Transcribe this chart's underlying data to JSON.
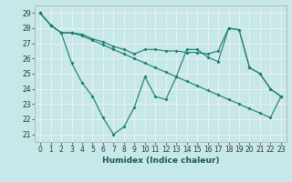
{
  "xlabel": "Humidex (Indice chaleur)",
  "xlim": [
    -0.5,
    23.5
  ],
  "ylim": [
    20.5,
    29.5
  ],
  "xticks": [
    0,
    1,
    2,
    3,
    4,
    5,
    6,
    7,
    8,
    9,
    10,
    11,
    12,
    13,
    14,
    15,
    16,
    17,
    18,
    19,
    20,
    21,
    22,
    23
  ],
  "yticks": [
    21,
    22,
    23,
    24,
    25,
    26,
    27,
    28,
    29
  ],
  "bg_color": "#c6e8e8",
  "grid_color": "#f0f0f0",
  "line_color": "#1a7a6e",
  "line1_y": [
    29,
    28.2,
    27.7,
    25.7,
    24.4,
    23.5,
    22.1,
    21.0,
    21.5,
    22.8,
    24.8,
    23.5,
    23.3,
    24.8,
    26.6,
    26.6,
    26.1,
    25.8,
    28.0,
    27.9,
    25.4,
    25.0,
    24.0,
    23.5
  ],
  "line2_y": [
    29,
    28.2,
    27.7,
    27.7,
    27.6,
    27.3,
    27.1,
    26.8,
    26.6,
    26.3,
    26.6,
    26.6,
    26.5,
    26.5,
    26.4,
    26.4,
    26.3,
    26.5,
    28.0,
    27.9,
    25.4,
    25.0,
    24.0,
    23.5
  ],
  "line3_y": [
    29,
    28.2,
    27.7,
    27.7,
    27.5,
    27.2,
    26.9,
    26.6,
    26.3,
    26.0,
    25.7,
    25.4,
    25.1,
    24.8,
    24.5,
    24.2,
    23.9,
    23.6,
    23.3,
    23.0,
    22.7,
    22.4,
    22.1,
    23.5
  ],
  "tick_fontsize": 5.5,
  "xlabel_fontsize": 6.5
}
